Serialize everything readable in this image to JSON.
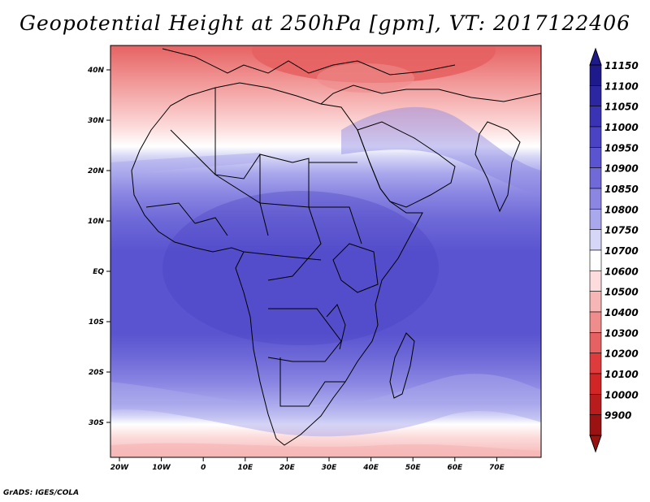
{
  "title": "Geopotential Height at 250hPa [gpm], VT: 2017122406",
  "footer": "GrADS: IGES/COLA",
  "map": {
    "region": "Africa, Arabian Peninsula and Mediterranean",
    "x_ticks": [
      "20W",
      "10W",
      "0",
      "10E",
      "20E",
      "30E",
      "40E",
      "50E",
      "60E",
      "70E"
    ],
    "y_ticks": [
      "40N",
      "30N",
      "20N",
      "10N",
      "EQ",
      "10S",
      "20S",
      "30S"
    ]
  },
  "colorbar": {
    "levels": [
      "11150",
      "11100",
      "11050",
      "11000",
      "10950",
      "10900",
      "10850",
      "10800",
      "10750",
      "10700",
      "10600",
      "10500",
      "10400",
      "10300",
      "10200",
      "10100",
      "10000",
      "9900"
    ],
    "colors": [
      "#1f1a8c",
      "#2c26a0",
      "#3a33b4",
      "#4a43c4",
      "#5a54d0",
      "#6f6ad8",
      "#8a86e2",
      "#aaa8ec",
      "#d6d6f6",
      "#ffffff",
      "#fcdcdc",
      "#f7b6b6",
      "#ef8c8c",
      "#e66262",
      "#de3c3c",
      "#d22626",
      "#b81c1c",
      "#9a1212"
    ]
  }
}
